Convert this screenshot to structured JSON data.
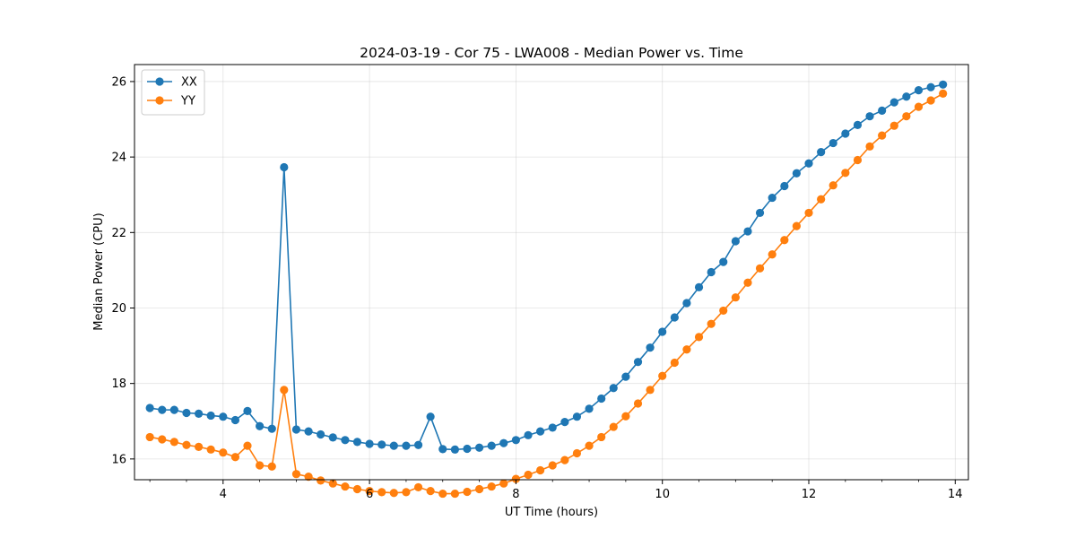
{
  "chart_data": {
    "type": "line",
    "title": "2024-03-19 - Cor 75 - LWA008 - Median Power vs. Time",
    "xlabel": "UT Time (hours)",
    "ylabel": "Median Power (CPU)",
    "xlim": [
      2.79,
      14.18
    ],
    "ylim": [
      15.45,
      26.45
    ],
    "x_ticks": [
      4,
      6,
      8,
      10,
      12,
      14
    ],
    "x_tick_labels": [
      "4",
      "6",
      "8",
      "10",
      "12",
      "14"
    ],
    "x_minor_step": 0.5,
    "y_ticks": [
      16,
      18,
      20,
      22,
      24,
      26
    ],
    "y_tick_labels": [
      "16",
      "18",
      "20",
      "22",
      "24",
      "26"
    ],
    "grid": true,
    "legend_position": "top-left",
    "x": [
      3.0,
      3.167,
      3.333,
      3.5,
      3.667,
      3.833,
      4.0,
      4.167,
      4.333,
      4.5,
      4.667,
      4.833,
      5.0,
      5.167,
      5.333,
      5.5,
      5.667,
      5.833,
      6.0,
      6.167,
      6.333,
      6.5,
      6.667,
      6.833,
      7.0,
      7.167,
      7.333,
      7.5,
      7.667,
      7.833,
      8.0,
      8.167,
      8.333,
      8.5,
      8.667,
      8.833,
      9.0,
      9.167,
      9.333,
      9.5,
      9.667,
      9.833,
      10.0,
      10.167,
      10.333,
      10.5,
      10.667,
      10.833,
      11.0,
      11.167,
      11.333,
      11.5,
      11.667,
      11.833,
      12.0,
      12.167,
      12.333,
      12.5,
      12.667,
      12.833,
      13.0,
      13.167,
      13.333,
      13.5,
      13.667,
      13.833
    ],
    "series": [
      {
        "name": "XX",
        "color": "#1f77b4",
        "values": [
          17.35,
          17.3,
          17.3,
          17.22,
          17.2,
          17.15,
          17.12,
          17.03,
          17.27,
          16.87,
          16.8,
          23.73,
          16.78,
          16.73,
          16.65,
          16.57,
          16.5,
          16.45,
          16.4,
          16.38,
          16.35,
          16.35,
          16.37,
          17.12,
          16.26,
          16.25,
          16.27,
          16.3,
          16.35,
          16.42,
          16.5,
          16.63,
          16.73,
          16.83,
          16.98,
          17.12,
          17.33,
          17.6,
          17.88,
          18.18,
          18.57,
          18.95,
          19.37,
          19.75,
          20.13,
          20.55,
          20.95,
          21.22,
          21.77,
          22.03,
          22.52,
          22.92,
          23.23,
          23.57,
          23.83,
          24.13,
          24.37,
          24.62,
          24.85,
          25.08,
          25.23,
          25.45,
          25.6,
          25.77,
          25.85,
          25.92
        ]
      },
      {
        "name": "YY",
        "color": "#ff7f0e",
        "values": [
          16.58,
          16.52,
          16.45,
          16.37,
          16.32,
          16.25,
          16.17,
          16.05,
          16.35,
          15.83,
          15.8,
          17.83,
          15.6,
          15.53,
          15.43,
          15.35,
          15.27,
          15.2,
          15.15,
          15.12,
          15.1,
          15.12,
          15.25,
          15.15,
          15.08,
          15.08,
          15.13,
          15.2,
          15.27,
          15.35,
          15.47,
          15.58,
          15.7,
          15.83,
          15.97,
          16.15,
          16.35,
          16.58,
          16.85,
          17.13,
          17.47,
          17.83,
          18.2,
          18.55,
          18.9,
          19.23,
          19.58,
          19.93,
          20.28,
          20.67,
          21.05,
          21.42,
          21.8,
          22.17,
          22.52,
          22.88,
          23.25,
          23.58,
          23.92,
          24.28,
          24.57,
          24.83,
          25.08,
          25.33,
          25.5,
          25.68
        ]
      }
    ]
  }
}
